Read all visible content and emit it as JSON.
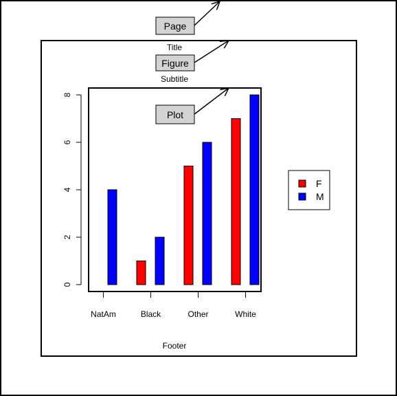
{
  "labels": {
    "page": "Page",
    "figure": "Figure",
    "plot": "Plot"
  },
  "legend": {
    "position": "right",
    "items": [
      {
        "label": "F",
        "color": "#ff0000"
      },
      {
        "label": "M",
        "color": "#0000ff"
      }
    ]
  },
  "chart_data": {
    "type": "bar",
    "title": "Title",
    "subtitle": "Subtitle",
    "footer": "Footer",
    "xlabel": "",
    "ylabel": "",
    "categories": [
      "NatAm",
      "Black",
      "Other",
      "White"
    ],
    "series": [
      {
        "name": "F",
        "color": "#ff0000",
        "values": [
          0,
          1,
          5,
          7
        ]
      },
      {
        "name": "M",
        "color": "#0000ff",
        "values": [
          4,
          2,
          6,
          8
        ]
      }
    ],
    "yticks": [
      0,
      2,
      4,
      6,
      8
    ],
    "ylim": [
      0,
      8
    ],
    "grid": false
  }
}
